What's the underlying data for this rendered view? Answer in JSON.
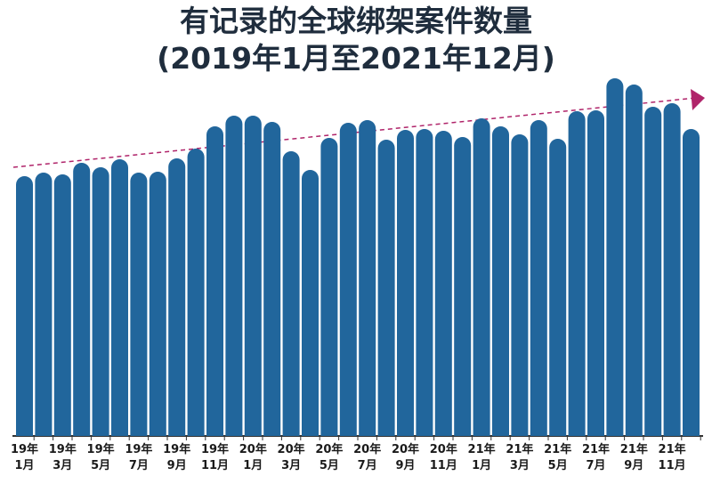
{
  "chart_data": {
    "type": "bar",
    "title": "有记录的全球绑架案件数量",
    "subtitle": "(2019年1月至2021年12月)",
    "categories": [
      "19年\n1月",
      null,
      "19年\n3月",
      null,
      "19年\n5月",
      null,
      "19年\n7月",
      null,
      "19年\n9月",
      null,
      "19年\n11月",
      null,
      "20年\n1月",
      null,
      "20年\n3月",
      null,
      "20年\n5月",
      null,
      "20年\n7月",
      null,
      "20年\n9月",
      null,
      "20年\n11月",
      null,
      "21年\n1月",
      null,
      "21年\n3月",
      null,
      "21年\n5月",
      null,
      "21年\n7月",
      null,
      "21年\n9月",
      null,
      "21年\n11月",
      null
    ],
    "values": [
      292,
      296,
      294,
      307,
      302,
      311,
      296,
      297,
      312,
      323,
      348,
      360,
      360,
      353,
      320,
      299,
      335,
      352,
      355,
      333,
      344,
      345,
      343,
      336,
      357,
      348,
      339,
      355,
      334,
      365,
      366,
      402,
      395,
      370,
      374,
      345
    ],
    "color": "#21669c",
    "ylim": [
      0,
      402
    ]
  }
}
